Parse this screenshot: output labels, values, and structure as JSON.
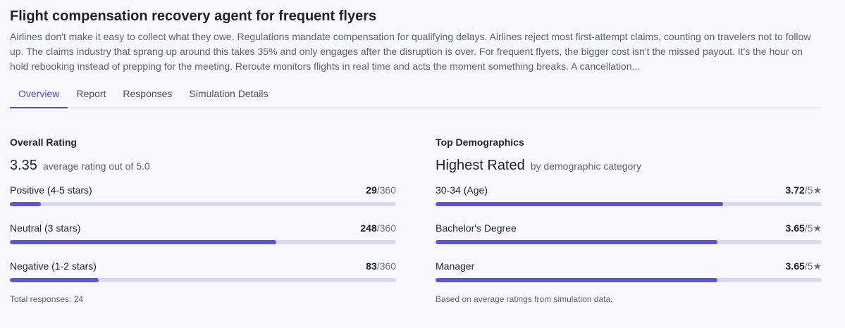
{
  "header": {
    "title": "Flight compensation recovery agent for frequent flyers",
    "description": "Airlines don't make it easy to collect what they owe. Regulations mandate compensation for qualifying delays. Airlines reject most first-attempt claims, counting on travelers not to follow up. The claims industry that sprang up around this takes 35% and only engages after the disruption is over. For frequent flyers, the bigger cost isn't the missed payout. It's the hour on hold rebooking instead of prepping for the meeting. Reroute monitors flights in real time and acts the moment something breaks. A cancellation..."
  },
  "tabs": [
    "Overview",
    "Report",
    "Responses",
    "Simulation Details"
  ],
  "active_tab": 0,
  "overall_rating": {
    "heading": "Overall Rating",
    "score": "3.35",
    "score_caption": "average rating out of 5.0",
    "rows": [
      {
        "label": "Positive (4-5 stars)",
        "count": 29,
        "total": {
          "value": 360,
          "label": "/360"
        }
      },
      {
        "label": "Neutral (3 stars)",
        "count": 248,
        "total": {
          "value": 360,
          "label": "/360"
        }
      },
      {
        "label": "Negative (1-2 stars)",
        "count": 83,
        "total": {
          "value": 360,
          "label": "/360"
        }
      }
    ],
    "footnote": "Total responses: 24"
  },
  "top_demographics": {
    "heading": "Top Demographics",
    "subheading": "Highest Rated",
    "subheading_caption": "by demographic category",
    "rows": [
      {
        "label": "30-34 (Age)",
        "score": 3.72,
        "scale": {
          "value": 5,
          "label": "/5★"
        }
      },
      {
        "label": "Bachelor's Degree",
        "score": 3.65,
        "scale": {
          "value": 5,
          "label": "/5★"
        }
      },
      {
        "label": "Manager",
        "score": 3.65,
        "scale": {
          "value": 5,
          "label": "/5★"
        }
      }
    ],
    "footnote": "Based on average ratings from simulation data."
  }
}
